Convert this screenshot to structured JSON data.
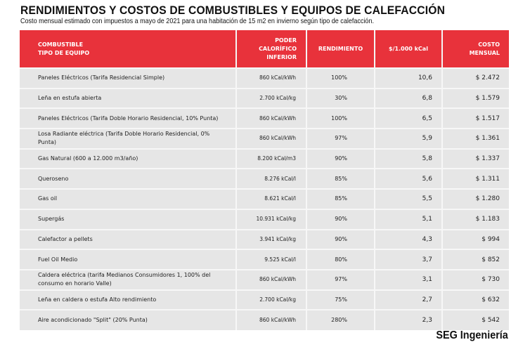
{
  "title": "RENDIMIENTOS Y COSTOS DE COMBUSTIBLES Y EQUIPOS DE CALEFACCIÓN",
  "subtitle": "Costo mensual estimado con impuestos a mayo de 2021 para una habitación de 15 m2 en invierno según tipo de calefacción.",
  "table": {
    "headers": {
      "fuel_line1": "COMBUSTIBLE",
      "fuel_line2": "TIPO DE EQUIPO",
      "calorific_line1": "PODER",
      "calorific_line2": "CALORÍFICO",
      "calorific_line3": "INFERIOR",
      "efficiency": "RENDIMIENTO",
      "per_kcal": "$/1.000 kCal",
      "cost_line1": "COSTO",
      "cost_line2": "MENSUAL"
    },
    "rows": [
      {
        "fuel": "Paneles Eléctricos (Tarifa Residencial Simple)",
        "calorific": "860 kCal/kWh",
        "efficiency": "100%",
        "per_kcal": "10,6",
        "cost": "$ 2.472"
      },
      {
        "fuel": "Leña en estufa abierta",
        "calorific": "2.700 kCal/kg",
        "efficiency": "30%",
        "per_kcal": "6,8",
        "cost": "$ 1.579"
      },
      {
        "fuel": "Paneles Eléctricos (Tarifa Doble Horario Residencial, 10% Punta)",
        "calorific": "860 kCal/kWh",
        "efficiency": "100%",
        "per_kcal": "6,5",
        "cost": "$ 1.517"
      },
      {
        "fuel": "Losa Radiante eléctrica (Tarifa Doble Horario Residencial, 0% Punta)",
        "calorific": "860 kCal/kWh",
        "efficiency": "97%",
        "per_kcal": "5,9",
        "cost": "$ 1.361"
      },
      {
        "fuel": "Gas Natural (600 a 12.000 m3/año)",
        "calorific": "8.200 kCal/m3",
        "efficiency": "90%",
        "per_kcal": "5,8",
        "cost": "$ 1.337"
      },
      {
        "fuel": "Queroseno",
        "calorific": "8.276 kCal/l",
        "efficiency": "85%",
        "per_kcal": "5,6",
        "cost": "$ 1.311"
      },
      {
        "fuel": "Gas oil",
        "calorific": "8.621 kCal/l",
        "efficiency": "85%",
        "per_kcal": "5,5",
        "cost": "$ 1.280"
      },
      {
        "fuel": "Supergás",
        "calorific": "10.931 kCal/kg",
        "efficiency": "90%",
        "per_kcal": "5,1",
        "cost": "$ 1.183"
      },
      {
        "fuel": "Calefactor a pellets",
        "calorific": "3.941 kCal/kg",
        "efficiency": "90%",
        "per_kcal": "4,3",
        "cost": "$ 994"
      },
      {
        "fuel": "Fuel Oil Medio",
        "calorific": "9.525 kCal/l",
        "efficiency": "80%",
        "per_kcal": "3,7",
        "cost": "$ 852"
      },
      {
        "fuel": "Caldera eléctrica (tarifa Medianos Consumidores 1, 100% del consumo en horario Valle)",
        "calorific": "860 kCal/kWh",
        "efficiency": "97%",
        "per_kcal": "3,1",
        "cost": "$ 730"
      },
      {
        "fuel": "Leña en caldera o estufa Alto rendimiento",
        "calorific": "2.700 kCal/kg",
        "efficiency": "75%",
        "per_kcal": "2,7",
        "cost": "$ 632"
      },
      {
        "fuel": "Aire acondicionado \"Split\" (20% Punta)",
        "calorific": "860 kCal/kWh",
        "efficiency": "280%",
        "per_kcal": "2,3",
        "cost": "$ 542"
      }
    ]
  },
  "credit": "SEG Ingeniería",
  "colors": {
    "header_bg": "#e8323b",
    "row_bg": "#e6e6e6"
  }
}
